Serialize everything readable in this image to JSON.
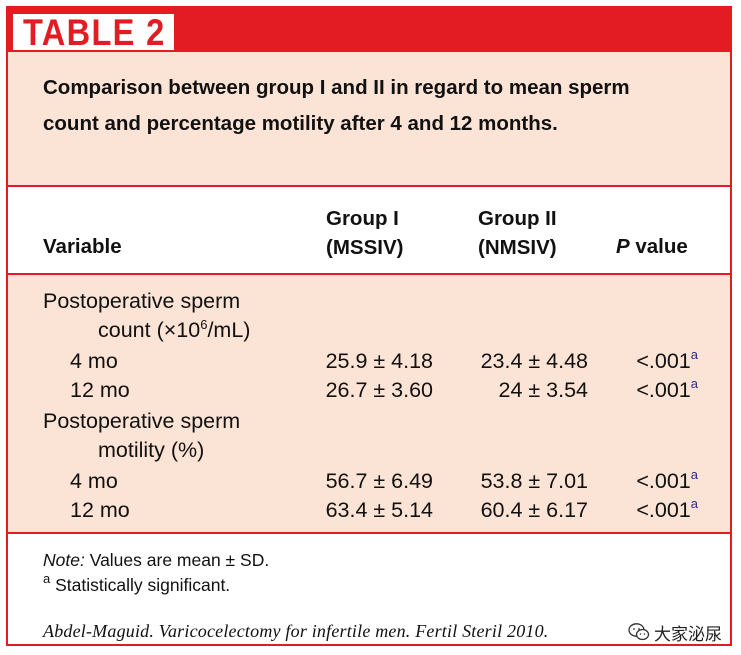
{
  "table_label": "TABLE 2",
  "caption": "Comparison between group I and II in regard to mean sperm count and percentage motility after 4 and 12 months.",
  "headers": {
    "variable": "Variable",
    "group1_line1": "Group I",
    "group1_line2": "(MSSIV)",
    "group2_line1": "Group II",
    "group2_line2": "(NMSIV)",
    "p_italic": "P",
    "p_rest": " value"
  },
  "sections": [
    {
      "title_line1": "Postoperative sperm",
      "title_line2_pre": "count (×10",
      "title_line2_sup": "6",
      "title_line2_post": "/mL)",
      "rows": [
        {
          "label": "4 mo",
          "g1": "25.9 ± 4.18",
          "g2": "23.4 ± 4.48",
          "p": "<.001",
          "sup": "a"
        },
        {
          "label": "12 mo",
          "g1": "26.7 ± 3.60",
          "g2": "24 ± 3.54",
          "p": "<.001",
          "sup": "a"
        }
      ]
    },
    {
      "title_line1": "Postoperative sperm",
      "title_line2": "motility (%)",
      "rows": [
        {
          "label": "4 mo",
          "g1": "56.7 ± 6.49",
          "g2": "53.8 ± 7.01",
          "p": "<.001",
          "sup": "a"
        },
        {
          "label": "12 mo",
          "g1": "63.4 ± 5.14",
          "g2": "60.4 ± 6.17",
          "p": "<.001",
          "sup": "a"
        }
      ]
    }
  ],
  "footnotes": {
    "note_label": "Note:",
    "note_text": " Values are mean ± SD.",
    "a_marker": "a",
    "a_text": " Statistically significant."
  },
  "citation": "Abdel-Maguid. Varicocelectomy for infertile men. Fertil Steril 2010.",
  "watermark": {
    "icon": "wechat-icon",
    "text": "大家泌尿"
  },
  "colors": {
    "accent": "#e31b23",
    "panel": "#fbe3d5"
  }
}
